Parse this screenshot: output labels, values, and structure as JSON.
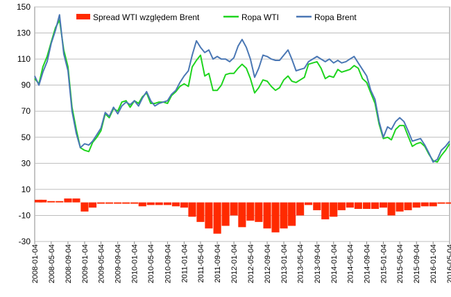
{
  "chart_data": {
    "type": "line",
    "title": "",
    "xlabel": "",
    "ylabel": "",
    "ylim": [
      -30,
      150
    ],
    "yticks": [
      -30,
      -10,
      10,
      30,
      50,
      70,
      90,
      110,
      130,
      150
    ],
    "x_tick_labels": [
      "2008-01-04",
      "2008-05-04",
      "2008-09-04",
      "2009-01-04",
      "2009-05-04",
      "2009-09-04",
      "2010-01-04",
      "2010-05-04",
      "2010-09-04",
      "2011-01-04",
      "2011-05-04",
      "2011-09-04",
      "2012-01-04",
      "2012-05-04",
      "2012-09-04",
      "2013-01-04",
      "2013-05-04",
      "2013-09-04",
      "2014-01-04",
      "2014-05-04",
      "2014-09-04",
      "2015-01-04",
      "2015-05-04",
      "2015-09-04",
      "2016-01-04",
      "2016-05-04"
    ],
    "grid": "horizontal",
    "legend_position": "top",
    "series": [
      {
        "name": "Spread WTI względem Brent",
        "kind": "bar",
        "color": "#ff2a00",
        "x": [
          "2008-01-04",
          "2008-03-04",
          "2008-05-04",
          "2008-07-04",
          "2008-09-04",
          "2008-11-04",
          "2009-01-04",
          "2009-03-04",
          "2009-05-04",
          "2009-07-04",
          "2009-09-04",
          "2009-11-04",
          "2010-01-04",
          "2010-03-04",
          "2010-05-04",
          "2010-07-04",
          "2010-09-04",
          "2010-11-04",
          "2011-01-04",
          "2011-03-04",
          "2011-05-04",
          "2011-07-04",
          "2011-09-04",
          "2011-11-04",
          "2012-01-04",
          "2012-03-04",
          "2012-05-04",
          "2012-07-04",
          "2012-09-04",
          "2012-11-04",
          "2013-01-04",
          "2013-03-04",
          "2013-05-04",
          "2013-07-04",
          "2013-09-04",
          "2013-11-04",
          "2014-01-04",
          "2014-03-04",
          "2014-05-04",
          "2014-07-04",
          "2014-09-04",
          "2014-11-04",
          "2015-01-04",
          "2015-03-04",
          "2015-05-04",
          "2015-07-04",
          "2015-09-04",
          "2015-11-04",
          "2016-01-04",
          "2016-03-04",
          "2016-05-04"
        ],
        "values": [
          2,
          2,
          1,
          1,
          3,
          3,
          -7,
          -4,
          -1,
          -1,
          -1,
          -1,
          -1,
          -3,
          -2,
          -2,
          -2,
          -3,
          -4,
          -11,
          -15,
          -20,
          -24,
          -18,
          -10,
          -19,
          -14,
          -15,
          -20,
          -23,
          -20,
          -18,
          -10,
          -2,
          -6,
          -13,
          -11,
          -6,
          -4,
          -5,
          -5,
          -5,
          -4,
          -10,
          -7,
          -6,
          -4,
          -3,
          -3,
          -1,
          -1
        ]
      },
      {
        "name": "Ropa WTI",
        "kind": "line",
        "color": "#1ed41e",
        "x": [
          "2008-01-04",
          "2008-02-04",
          "2008-03-04",
          "2008-04-04",
          "2008-05-04",
          "2008-06-04",
          "2008-07-04",
          "2008-08-04",
          "2008-09-04",
          "2008-10-04",
          "2008-11-04",
          "2008-12-04",
          "2009-01-04",
          "2009-02-04",
          "2009-03-04",
          "2009-04-04",
          "2009-05-04",
          "2009-06-04",
          "2009-07-04",
          "2009-08-04",
          "2009-09-04",
          "2009-10-04",
          "2009-11-04",
          "2009-12-04",
          "2010-01-04",
          "2010-02-04",
          "2010-03-04",
          "2010-04-04",
          "2010-05-04",
          "2010-06-04",
          "2010-07-04",
          "2010-08-04",
          "2010-09-04",
          "2010-10-04",
          "2010-11-04",
          "2010-12-04",
          "2011-01-04",
          "2011-02-04",
          "2011-03-04",
          "2011-04-04",
          "2011-05-04",
          "2011-06-04",
          "2011-07-04",
          "2011-08-04",
          "2011-09-04",
          "2011-10-04",
          "2011-11-04",
          "2011-12-04",
          "2012-01-04",
          "2012-02-04",
          "2012-03-04",
          "2012-04-04",
          "2012-05-04",
          "2012-06-04",
          "2012-07-04",
          "2012-08-04",
          "2012-09-04",
          "2012-10-04",
          "2012-11-04",
          "2012-12-04",
          "2013-01-04",
          "2013-02-04",
          "2013-03-04",
          "2013-04-04",
          "2013-05-04",
          "2013-06-04",
          "2013-07-04",
          "2013-08-04",
          "2013-09-04",
          "2013-10-04",
          "2013-11-04",
          "2013-12-04",
          "2014-01-04",
          "2014-02-04",
          "2014-03-04",
          "2014-04-04",
          "2014-05-04",
          "2014-06-04",
          "2014-07-04",
          "2014-08-04",
          "2014-09-04",
          "2014-10-04",
          "2014-11-04",
          "2014-12-04",
          "2015-01-04",
          "2015-02-04",
          "2015-03-04",
          "2015-04-04",
          "2015-05-04",
          "2015-06-04",
          "2015-07-04",
          "2015-08-04",
          "2015-09-04",
          "2015-10-04",
          "2015-11-04",
          "2015-12-04",
          "2016-01-04",
          "2016-02-04",
          "2016-03-04",
          "2016-04-04",
          "2016-05-04"
        ],
        "values": [
          95,
          91,
          104,
          112,
          123,
          134,
          140,
          117,
          104,
          73,
          56,
          42,
          40,
          39,
          46,
          50,
          55,
          68,
          65,
          72,
          70,
          77,
          78,
          73,
          78,
          76,
          81,
          84,
          76,
          76,
          77,
          77,
          76,
          82,
          85,
          89,
          91,
          89,
          104,
          109,
          113,
          97,
          99,
          86,
          86,
          90,
          98,
          99,
          99,
          103,
          106,
          103,
          95,
          84,
          88,
          94,
          93,
          89,
          86,
          88,
          94,
          97,
          93,
          92,
          94,
          96,
          106,
          107,
          108,
          103,
          95,
          97,
          96,
          102,
          100,
          101,
          102,
          105,
          103,
          95,
          92,
          84,
          76,
          60,
          49,
          50,
          48,
          56,
          59,
          59,
          51,
          43,
          45,
          46,
          43,
          37,
          32,
          31,
          36,
          40,
          45
        ]
      },
      {
        "name": "Ropa Brent",
        "kind": "line",
        "color": "#4a77b4",
        "x": [
          "2008-01-04",
          "2008-02-04",
          "2008-03-04",
          "2008-04-04",
          "2008-05-04",
          "2008-06-04",
          "2008-07-04",
          "2008-08-04",
          "2008-09-04",
          "2008-10-04",
          "2008-11-04",
          "2008-12-04",
          "2009-01-04",
          "2009-02-04",
          "2009-03-04",
          "2009-04-04",
          "2009-05-04",
          "2009-06-04",
          "2009-07-04",
          "2009-08-04",
          "2009-09-04",
          "2009-10-04",
          "2009-11-04",
          "2009-12-04",
          "2010-01-04",
          "2010-02-04",
          "2010-03-04",
          "2010-04-04",
          "2010-05-04",
          "2010-06-04",
          "2010-07-04",
          "2010-08-04",
          "2010-09-04",
          "2010-10-04",
          "2010-11-04",
          "2010-12-04",
          "2011-01-04",
          "2011-02-04",
          "2011-03-04",
          "2011-04-04",
          "2011-05-04",
          "2011-06-04",
          "2011-07-04",
          "2011-08-04",
          "2011-09-04",
          "2011-10-04",
          "2011-11-04",
          "2011-12-04",
          "2012-01-04",
          "2012-02-04",
          "2012-03-04",
          "2012-04-04",
          "2012-05-04",
          "2012-06-04",
          "2012-07-04",
          "2012-08-04",
          "2012-09-04",
          "2012-10-04",
          "2012-11-04",
          "2012-12-04",
          "2013-01-04",
          "2013-02-04",
          "2013-03-04",
          "2013-04-04",
          "2013-05-04",
          "2013-06-04",
          "2013-07-04",
          "2013-08-04",
          "2013-09-04",
          "2013-10-04",
          "2013-11-04",
          "2013-12-04",
          "2014-01-04",
          "2014-02-04",
          "2014-03-04",
          "2014-04-04",
          "2014-05-04",
          "2014-06-04",
          "2014-07-04",
          "2014-08-04",
          "2014-09-04",
          "2014-10-04",
          "2014-11-04",
          "2014-12-04",
          "2015-01-04",
          "2015-02-04",
          "2015-03-04",
          "2015-04-04",
          "2015-05-04",
          "2015-06-04",
          "2015-07-04",
          "2015-08-04",
          "2015-09-04",
          "2015-10-04",
          "2015-11-04",
          "2015-12-04",
          "2016-01-04",
          "2016-02-04",
          "2016-03-04",
          "2016-04-04",
          "2016-05-04"
        ],
        "values": [
          97,
          90,
          100,
          108,
          122,
          132,
          144,
          114,
          101,
          70,
          53,
          42,
          45,
          44,
          47,
          52,
          57,
          69,
          66,
          73,
          68,
          74,
          77,
          75,
          78,
          74,
          80,
          85,
          78,
          74,
          76,
          77,
          78,
          83,
          86,
          92,
          97,
          101,
          113,
          124,
          119,
          115,
          117,
          110,
          112,
          110,
          110,
          108,
          111,
          120,
          125,
          119,
          110,
          96,
          103,
          113,
          112,
          110,
          109,
          109,
          113,
          117,
          110,
          101,
          102,
          103,
          108,
          110,
          112,
          110,
          108,
          110,
          107,
          109,
          107,
          108,
          110,
          112,
          107,
          102,
          97,
          86,
          79,
          62,
          50,
          58,
          56,
          62,
          65,
          62,
          55,
          47,
          48,
          49,
          44,
          38,
          31,
          33,
          40,
          43,
          47
        ]
      }
    ]
  }
}
